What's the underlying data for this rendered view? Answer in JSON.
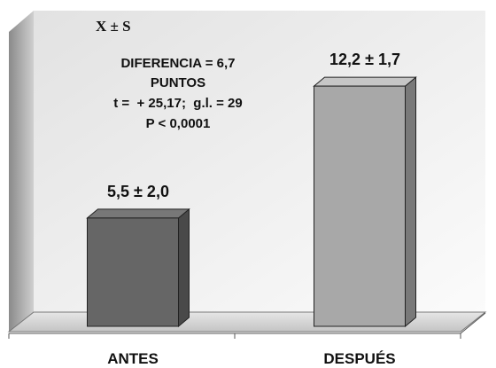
{
  "chart_data": {
    "type": "bar",
    "categories": [
      "ANTES",
      "DESPUÉS"
    ],
    "values": [
      5.5,
      12.2
    ],
    "errors": [
      2.0,
      1.7
    ],
    "value_labels": [
      "5,5 ± 2,0",
      "12,2 ± 1,7"
    ],
    "title": "",
    "xlabel": "",
    "ylabel": "",
    "ylim": [
      0,
      14
    ],
    "grid": false,
    "legend": "none",
    "three_d": true,
    "bar_colors": [
      "#666666",
      "#a8a8a8"
    ],
    "annotation": {
      "symbol": "X ± S",
      "lines": [
        "DIFERENCIA = 6,7",
        "PUNTOS",
        "t =  + 25,17;  g.l. = 29",
        "P < 0,0001"
      ]
    }
  }
}
